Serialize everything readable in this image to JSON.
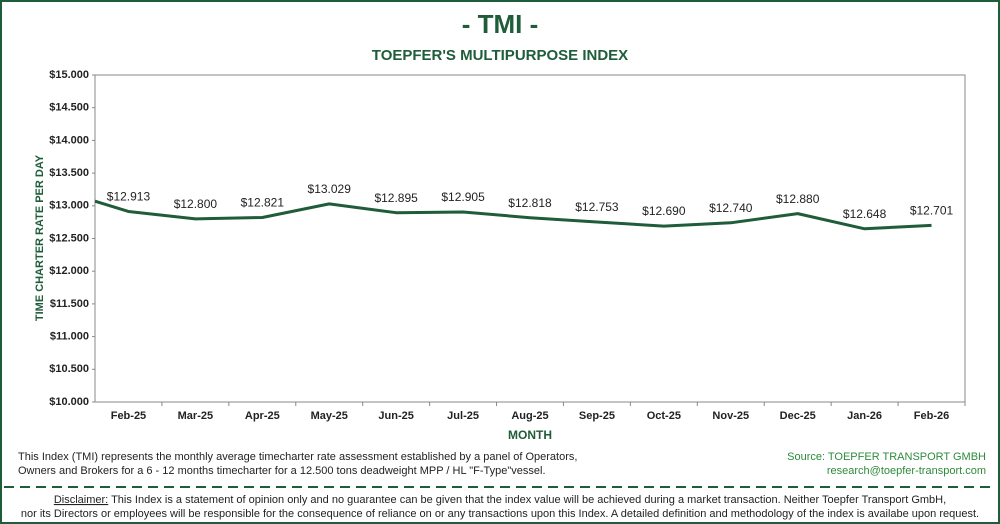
{
  "chart_data": {
    "type": "line",
    "title": "- TMI -",
    "subtitle": "TOEPFER'S MULTIPURPOSE INDEX",
    "x_label": "MONTH",
    "y_label": "TIME CHARTER RATE PER DAY",
    "categories": [
      null,
      "Feb-25",
      "Mar-25",
      "Apr-25",
      "May-25",
      "Jun-25",
      "Jul-25",
      "Aug-25",
      "Sep-25",
      "Oct-25",
      "Nov-25",
      "Dec-25",
      "Jan-26",
      "Feb-26"
    ],
    "values": [
      13.07,
      12.913,
      12.8,
      12.821,
      13.029,
      12.895,
      12.905,
      12.818,
      12.753,
      12.69,
      12.74,
      12.88,
      12.648,
      12.701
    ],
    "value_labels": [
      null,
      "$12.913",
      "$12.800",
      "$12.821",
      "$13.029",
      "$12.895",
      "$12.905",
      "$12.818",
      "$12.753",
      "$12.690",
      "$12.740",
      "$12.880",
      "$12.648",
      "$12.701"
    ],
    "color": "#1e5c3a",
    "ylim": [
      10,
      15
    ],
    "yticks": [
      {
        "value": 10,
        "label": "$10.000"
      },
      {
        "value": 10.5,
        "label": "$10.500"
      },
      {
        "value": 11,
        "label": "$11.000"
      },
      {
        "value": 11.5,
        "label": "$11.500"
      },
      {
        "value": 12,
        "label": "$12.000"
      },
      {
        "value": 12.5,
        "label": "$12.500"
      },
      {
        "value": 13,
        "label": "$13.000"
      },
      {
        "value": 13.5,
        "label": "$13.500"
      },
      {
        "value": 14,
        "label": "$14.000"
      },
      {
        "value": 14.5,
        "label": "$14.500"
      },
      {
        "value": 15,
        "label": "$15.000"
      }
    ],
    "grid": false
  },
  "description": [
    "This Index (TMI) represents the monthly average timecharter rate assessment established by a panel of Operators,",
    "Owners and Brokers for a 6 - 12 months timecharter for a 12.500 tons deadweight MPP / HL \"F-Type\"vessel."
  ],
  "source": [
    "Source: TOEPFER TRANSPORT GMBH",
    "research@toepfer-transport.com"
  ],
  "disclaimer": {
    "label": "Disclaimer:",
    "lines": [
      " This Index is a statement of opinion only and no guarantee can be given that the index value will be achieved during a market transaction. Neither Toepfer Transport GmbH,",
      "nor its Directors or employees will be responsible for the consequence of reliance on or any transactions upon this Index.  A detailed definition and methodology of the index is availabe upon request."
    ]
  }
}
